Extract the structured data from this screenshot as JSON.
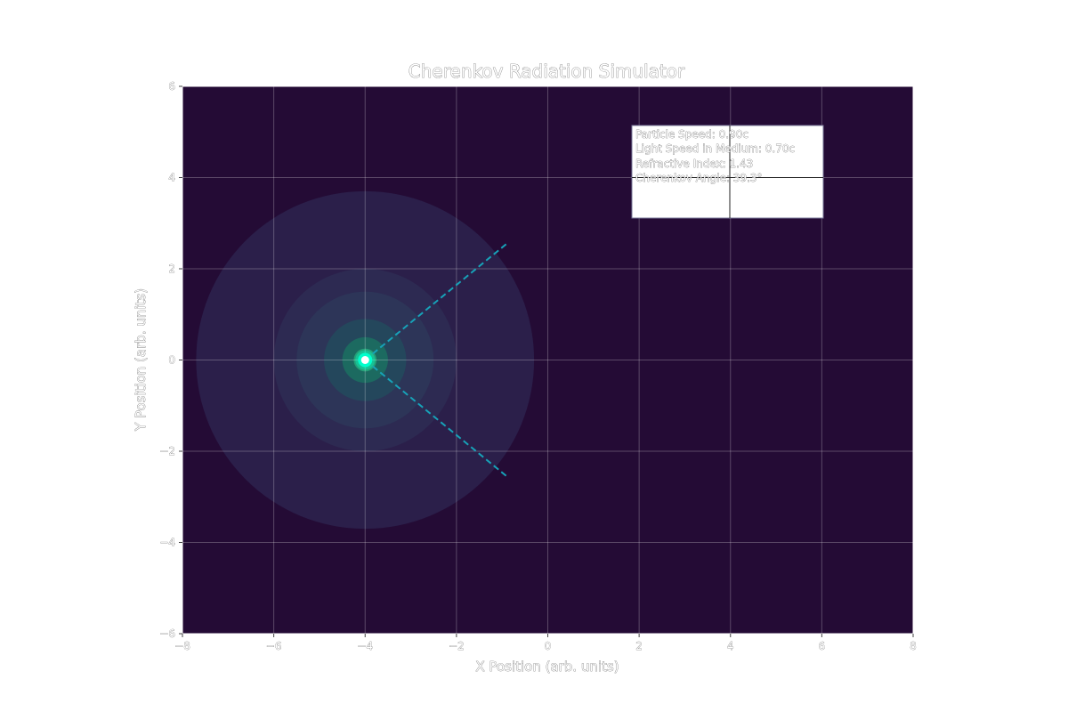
{
  "chart_data": {
    "type": "scatter",
    "title": "Cherenkov Radiation Simulator",
    "xlabel": "X Position (arb. units)",
    "ylabel": "Y Position (arb. units)",
    "xlim": [
      -8,
      8
    ],
    "ylim": [
      -6,
      6
    ],
    "xticks": [
      -8,
      -6,
      -4,
      -2,
      0,
      2,
      4,
      6,
      8
    ],
    "yticks": [
      -6,
      -4,
      -2,
      0,
      2,
      4,
      6
    ],
    "xtick_labels": [
      "−8",
      "−6",
      "−4",
      "−2",
      "0",
      "2",
      "4",
      "6",
      "8"
    ],
    "ytick_labels": [
      "−6",
      "−4",
      "−2",
      "0",
      "2",
      "4",
      "6"
    ],
    "grid": true,
    "background_color": "#240b35",
    "particle": {
      "x": -4.0,
      "y": 0.0,
      "color": "#00ffcc"
    },
    "wavefront_rings": [
      {
        "radius": 3.7,
        "color": "#2b1f4a"
      },
      {
        "radius": 2.0,
        "color": "#2d2a52"
      },
      {
        "radius": 1.5,
        "color": "#2d3558"
      },
      {
        "radius": 0.9,
        "color": "#24475c"
      },
      {
        "radius": 0.5,
        "color": "#1c6a60"
      },
      {
        "radius": 0.25,
        "color": "#25a078"
      }
    ],
    "cone_lines": [
      {
        "x": [
          -4.0,
          -0.9
        ],
        "y": [
          0.0,
          2.55
        ],
        "color": "#17a2b8"
      },
      {
        "x": [
          -4.0,
          -0.9
        ],
        "y": [
          0.0,
          -2.55
        ],
        "color": "#17a2b8"
      }
    ],
    "info_box": {
      "lines": [
        "Particle Speed: 0.90c",
        "Light Speed in Medium: 0.70c",
        "Refractive Index: 1.43",
        "Cherenkov Angle: 39.3°"
      ],
      "position": "top-right"
    }
  }
}
